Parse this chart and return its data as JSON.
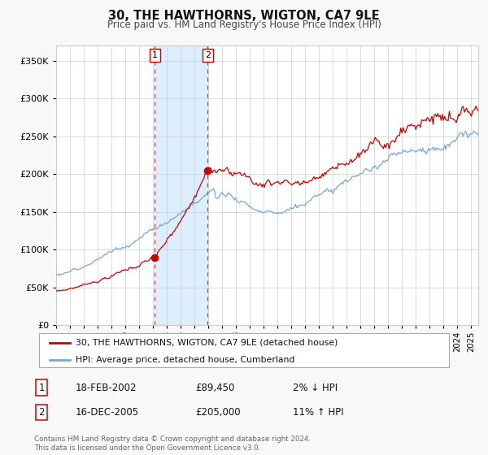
{
  "title": "30, THE HAWTHORNS, WIGTON, CA7 9LE",
  "subtitle": "Price paid vs. HM Land Registry's House Price Index (HPI)",
  "red_label": "30, THE HAWTHORNS, WIGTON, CA7 9LE (detached house)",
  "blue_label": "HPI: Average price, detached house, Cumberland",
  "transaction1_date": "18-FEB-2002",
  "transaction1_price": "£89,450",
  "transaction1_hpi": "2% ↓ HPI",
  "transaction1_year": 2002.125,
  "transaction1_value": 89450,
  "transaction2_date": "16-DEC-2005",
  "transaction2_price": "£205,000",
  "transaction2_hpi": "11% ↑ HPI",
  "transaction2_year": 2005.958,
  "transaction2_value": 205000,
  "shaded_start": 2002.125,
  "shaded_end": 2005.958,
  "ylim_min": 0,
  "ylim_max": 370000,
  "xlim_min": 1995.0,
  "xlim_max": 2025.5,
  "background_color": "#f8f8f8",
  "plot_background": "#ffffff",
  "red_color": "#cc0000",
  "blue_color": "#7aa8d2",
  "shaded_color": "#ddeeff",
  "grid_color": "#cccccc",
  "footer_text": "Contains HM Land Registry data © Crown copyright and database right 2024.\nThis data is licensed under the Open Government Licence v3.0."
}
